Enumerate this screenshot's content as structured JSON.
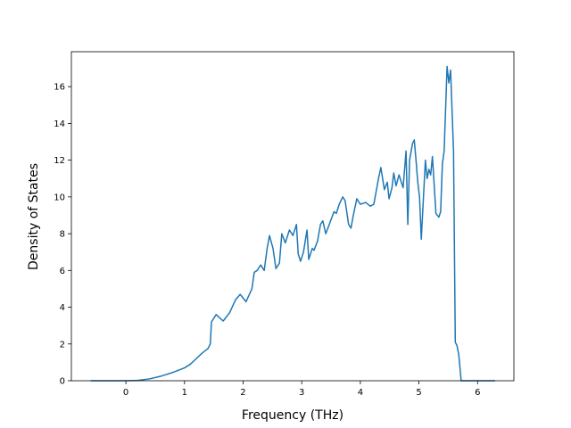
{
  "chart_data": {
    "type": "line",
    "xlabel": "Frequency (THz)",
    "ylabel": "Density of States",
    "x": [
      -0.6,
      0,
      0.2,
      0.4,
      0.6,
      0.8,
      1.0,
      1.1,
      1.2,
      1.3,
      1.4,
      1.44,
      1.46,
      1.54,
      1.66,
      1.77,
      1.87,
      1.95,
      2.05,
      2.15,
      2.19,
      2.24,
      2.3,
      2.36,
      2.41,
      2.45,
      2.51,
      2.56,
      2.62,
      2.66,
      2.72,
      2.79,
      2.85,
      2.91,
      2.94,
      2.98,
      3.03,
      3.09,
      3.12,
      3.18,
      3.21,
      3.27,
      3.32,
      3.36,
      3.41,
      3.47,
      3.55,
      3.59,
      3.64,
      3.7,
      3.74,
      3.8,
      3.84,
      3.88,
      3.94,
      4.0,
      4.09,
      4.17,
      4.23,
      4.31,
      4.35,
      4.41,
      4.46,
      4.49,
      4.54,
      4.57,
      4.61,
      4.66,
      4.73,
      4.78,
      4.81,
      4.84,
      4.89,
      4.92,
      4.95,
      4.98,
      5.01,
      5.04,
      5.11,
      5.14,
      5.17,
      5.2,
      5.23,
      5.29,
      5.34,
      5.37,
      5.4,
      5.43,
      5.48,
      5.51,
      5.54,
      5.59,
      5.62,
      5.65,
      5.68,
      5.72,
      6.3
    ],
    "series": [
      {
        "color": "#1f77b4",
        "values": [
          0,
          0,
          0.02,
          0.1,
          0.25,
          0.45,
          0.7,
          0.9,
          1.2,
          1.5,
          1.75,
          2.0,
          3.2,
          3.6,
          3.25,
          3.7,
          4.4,
          4.7,
          4.3,
          5.0,
          5.9,
          6.0,
          6.3,
          6.0,
          7.2,
          7.9,
          7.2,
          6.1,
          6.4,
          8.0,
          7.5,
          8.2,
          7.9,
          8.5,
          6.9,
          6.5,
          7.0,
          8.2,
          6.6,
          7.2,
          7.1,
          7.6,
          8.5,
          8.7,
          8.0,
          8.5,
          9.2,
          9.1,
          9.6,
          10.0,
          9.8,
          8.5,
          8.3,
          9.0,
          9.9,
          9.6,
          9.7,
          9.5,
          9.6,
          11.0,
          11.6,
          10.4,
          10.8,
          9.9,
          10.5,
          11.3,
          10.6,
          11.2,
          10.5,
          12.5,
          8.5,
          12.0,
          12.9,
          13.1,
          12.0,
          10.8,
          10.0,
          7.7,
          12.0,
          11.0,
          11.5,
          11.2,
          12.2,
          9.1,
          8.9,
          9.2,
          11.8,
          12.5,
          17.1,
          16.2,
          16.9,
          12.5,
          2.1,
          1.9,
          1.4,
          0,
          0
        ]
      }
    ],
    "xlim": [
      -0.93,
      6.62
    ],
    "xticks": [
      0,
      1,
      2,
      3,
      4,
      5,
      6
    ],
    "ylim": [
      0,
      17.9
    ],
    "yticks": [
      0,
      2,
      4,
      6,
      8,
      10,
      12,
      14,
      16
    ]
  }
}
